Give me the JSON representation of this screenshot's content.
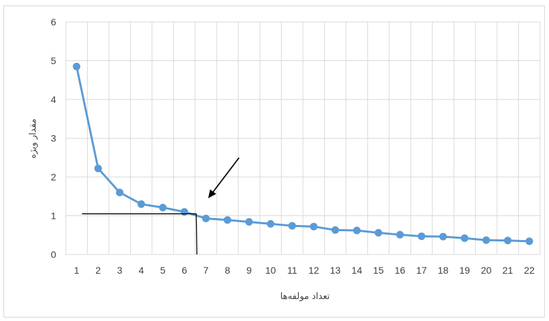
{
  "chart_data": {
    "type": "line",
    "title": "",
    "xlabel": "تعداد مولفه‌ها",
    "ylabel": "مقدار ویژه",
    "categories": [
      "1",
      "2",
      "3",
      "4",
      "5",
      "6",
      "7",
      "8",
      "9",
      "10",
      "11",
      "12",
      "13",
      "14",
      "15",
      "16",
      "17",
      "18",
      "19",
      "20",
      "21",
      "22"
    ],
    "series": [
      {
        "values": [
          4.85,
          2.22,
          1.6,
          1.3,
          1.21,
          1.1,
          0.93,
          0.89,
          0.84,
          0.79,
          0.74,
          0.72,
          0.63,
          0.62,
          0.56,
          0.51,
          0.47,
          0.46,
          0.42,
          0.37,
          0.36,
          0.34
        ]
      }
    ],
    "ylim": [
      0,
      6
    ],
    "yticks": [
      "0",
      "1",
      "2",
      "3",
      "4",
      "5",
      "6"
    ],
    "grid": true,
    "legend": "none",
    "colors": {
      "series": "#5b9bd5",
      "grid": "#d9d9d9",
      "annotation": "#000000"
    },
    "annotations": [
      {
        "type": "arrow",
        "points_to_x": 6.5
      },
      {
        "type": "horizontal-line",
        "y": 1.05,
        "from_x": 1.25,
        "to_x": 6.55
      },
      {
        "type": "vertical-line",
        "x": 6.55,
        "from_y": 1.05,
        "to_y": 0
      }
    ]
  }
}
